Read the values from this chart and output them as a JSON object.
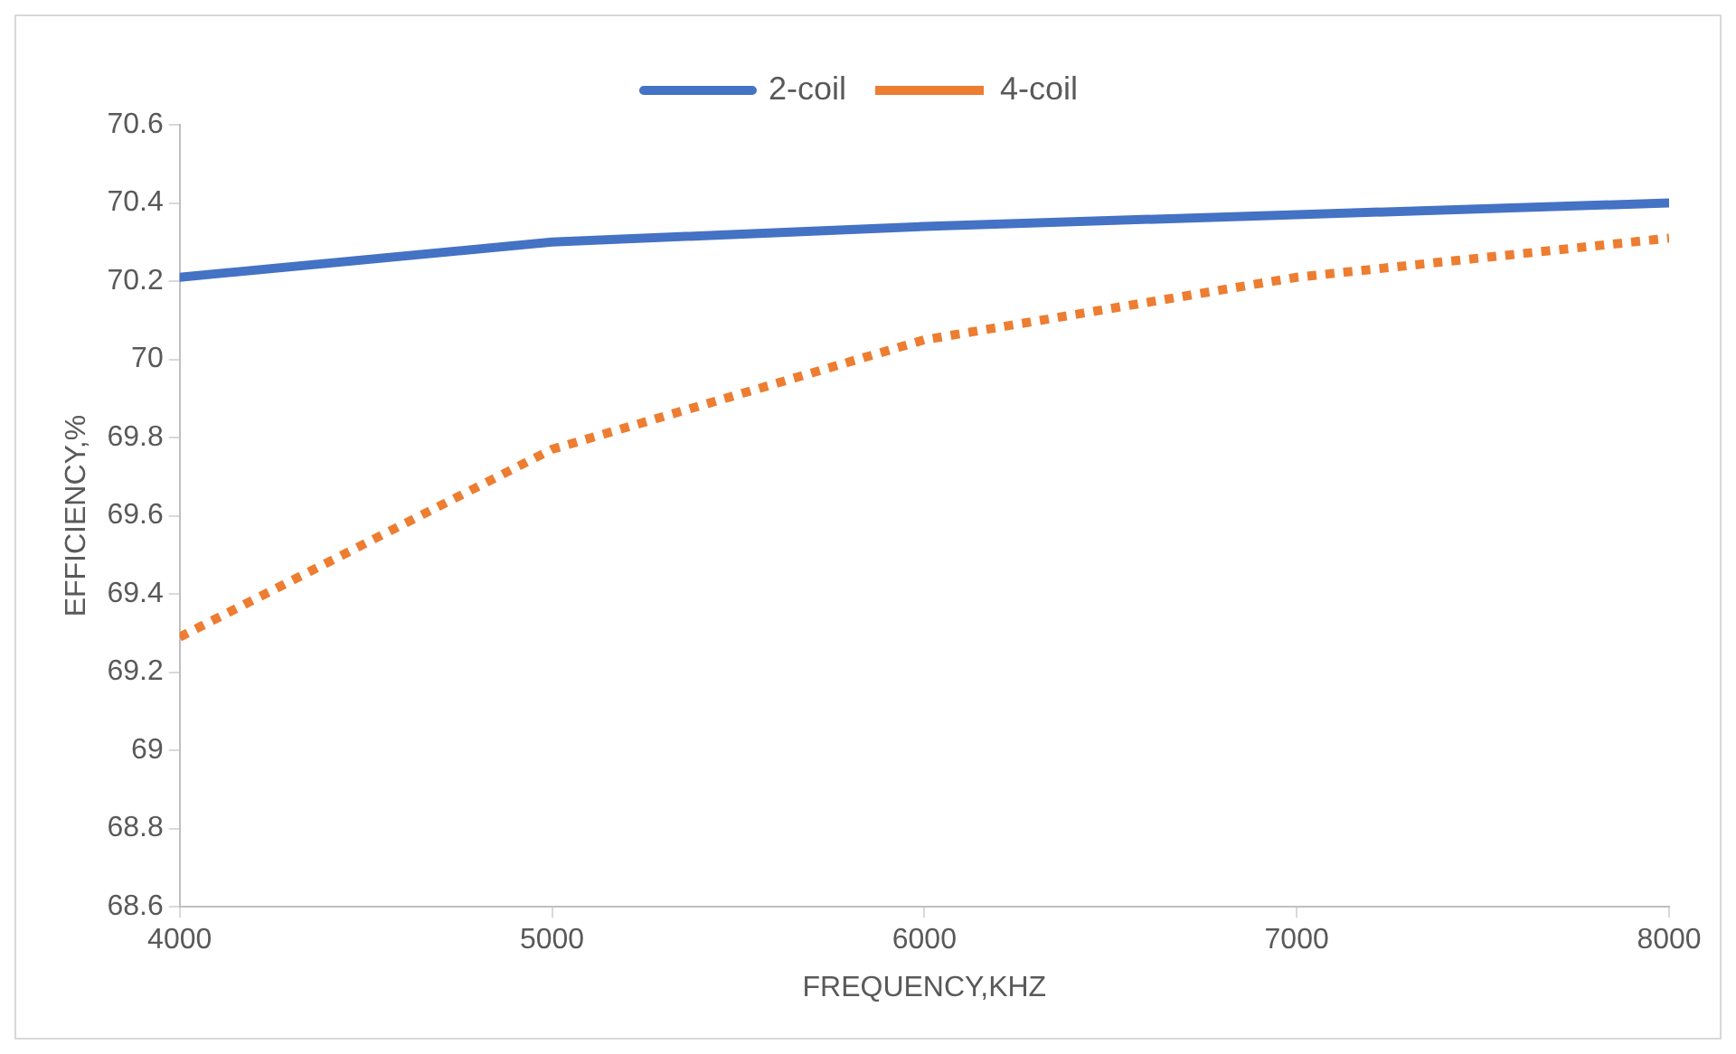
{
  "chart_data": {
    "type": "line",
    "xlabel": "FREQUENCY,KHZ",
    "ylabel": "EFFICIENCY,%",
    "x": [
      4000,
      5000,
      6000,
      7000,
      8000
    ],
    "series": [
      {
        "name": "2-coil",
        "color": "#4472c4",
        "line_style": "solid",
        "values": [
          70.21,
          70.3,
          70.34,
          70.37,
          70.4
        ]
      },
      {
        "name": "4-coil",
        "color": "#ed7d31",
        "line_style": "dotted",
        "values": [
          69.29,
          69.77,
          70.05,
          70.21,
          70.31
        ]
      }
    ],
    "xlim": [
      4000,
      8000
    ],
    "xticks": [
      4000,
      5000,
      6000,
      7000,
      8000
    ],
    "ylim": [
      68.6,
      70.6
    ],
    "yticks": [
      68.6,
      68.8,
      69,
      69.2,
      69.4,
      69.6,
      69.8,
      70,
      70.2,
      70.4,
      70.6
    ],
    "grid": false,
    "legend": "top",
    "marker": "none"
  }
}
